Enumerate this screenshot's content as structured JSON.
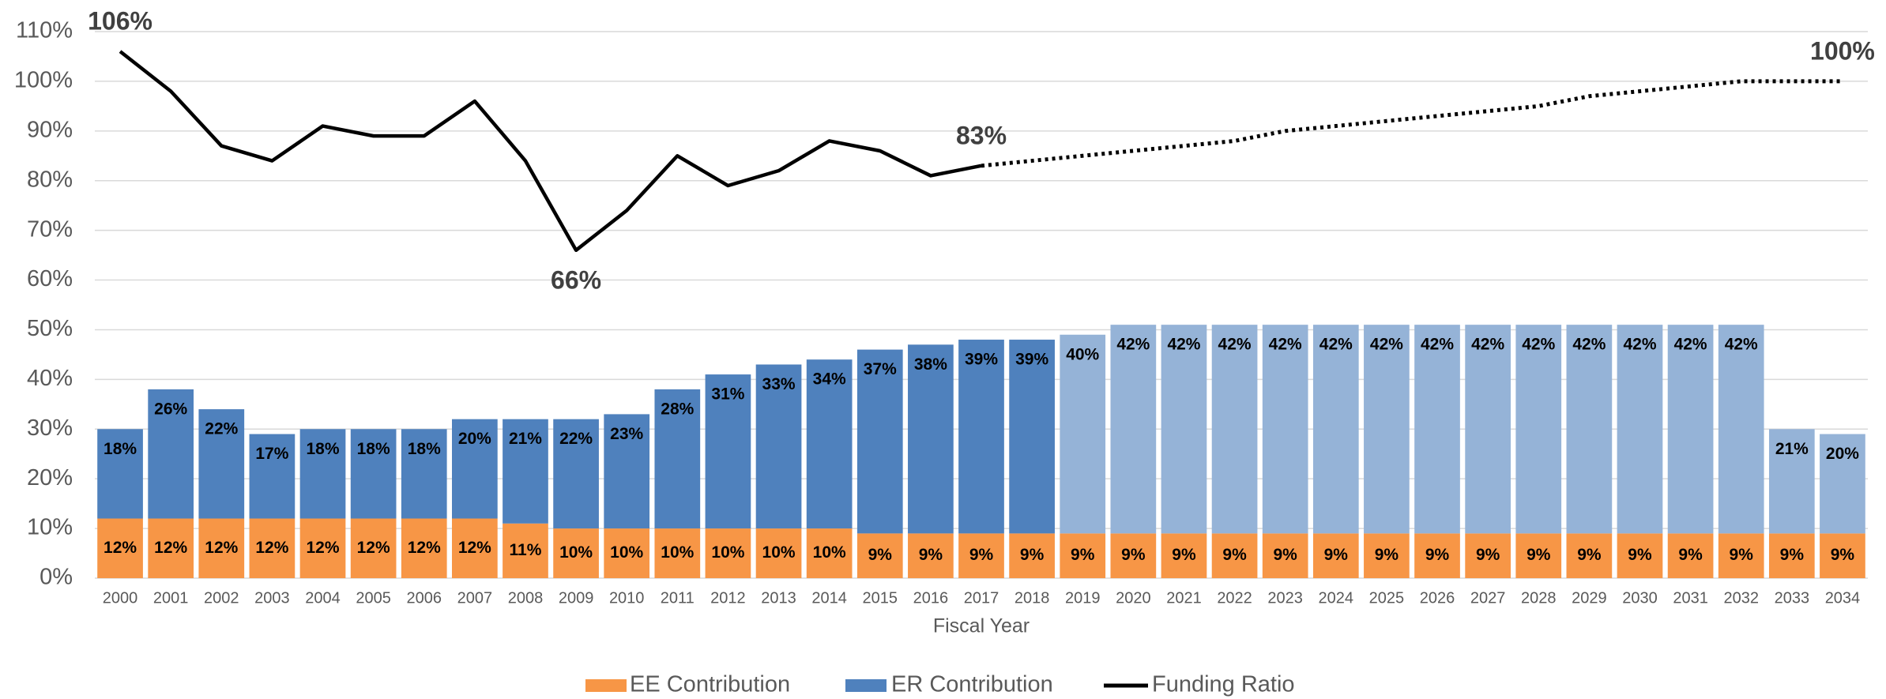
{
  "chart_data": {
    "type": "stacked-bar-line",
    "x_label": "Fiscal Year",
    "categories": [
      "2000",
      "2001",
      "2002",
      "2003",
      "2004",
      "2005",
      "2006",
      "2007",
      "2008",
      "2009",
      "2010",
      "2011",
      "2012",
      "2013",
      "2014",
      "2015",
      "2016",
      "2017",
      "2018",
      "2019",
      "2020",
      "2021",
      "2022",
      "2023",
      "2024",
      "2025",
      "2026",
      "2027",
      "2028",
      "2029",
      "2030",
      "2031",
      "2032",
      "2033",
      "2034"
    ],
    "ylim": [
      0,
      110
    ],
    "yticks": [
      {
        "value": 0,
        "label": "0%"
      },
      {
        "value": 10,
        "label": "10%"
      },
      {
        "value": 20,
        "label": "20%"
      },
      {
        "value": 30,
        "label": "30%"
      },
      {
        "value": 40,
        "label": "40%"
      },
      {
        "value": 50,
        "label": "50%"
      },
      {
        "value": 60,
        "label": "60%"
      },
      {
        "value": 70,
        "label": "70%"
      },
      {
        "value": 80,
        "label": "80%"
      },
      {
        "value": 90,
        "label": "90%"
      },
      {
        "value": 100,
        "label": "100%"
      },
      {
        "value": 110,
        "label": "110%"
      }
    ],
    "grid": true,
    "legend": "bottom",
    "series": [
      {
        "name": "EE Contribution",
        "kind": "bar",
        "color": "#f79646",
        "values": [
          12,
          12,
          12,
          12,
          12,
          12,
          12,
          12,
          11,
          10,
          10,
          10,
          10,
          10,
          10,
          9,
          9,
          9,
          9,
          9,
          9,
          9,
          9,
          9,
          9,
          9,
          9,
          9,
          9,
          9,
          9,
          9,
          9,
          9,
          9
        ],
        "value_labels": [
          "12%",
          "12%",
          "12%",
          "12%",
          "12%",
          "12%",
          "12%",
          "12%",
          "11%",
          "10%",
          "10%",
          "10%",
          "10%",
          "10%",
          "10%",
          "9%",
          "9%",
          "9%",
          "9%",
          "9%",
          "9%",
          "9%",
          "9%",
          "9%",
          "9%",
          "9%",
          "9%",
          "9%",
          "9%",
          "9%",
          "9%",
          "9%",
          "9%",
          "9%",
          "9%"
        ]
      },
      {
        "name": "ER Contribution",
        "kind": "bar",
        "color": "#4f81bd",
        "projected_color": "#95b3d7",
        "projected_from": "2019",
        "values": [
          18,
          26,
          22,
          17,
          18,
          18,
          18,
          20,
          21,
          22,
          23,
          28,
          31,
          33,
          34,
          37,
          38,
          39,
          39,
          40,
          42,
          42,
          42,
          42,
          42,
          42,
          42,
          42,
          42,
          42,
          42,
          42,
          42,
          21,
          20
        ],
        "value_labels": [
          "18%",
          "26%",
          "22%",
          "17%",
          "18%",
          "18%",
          "18%",
          "20%",
          "21%",
          "22%",
          "23%",
          "28%",
          "31%",
          "33%",
          "34%",
          "37%",
          "38%",
          "39%",
          "39%",
          "40%",
          "42%",
          "42%",
          "42%",
          "42%",
          "42%",
          "42%",
          "42%",
          "42%",
          "42%",
          "42%",
          "42%",
          "42%",
          "42%",
          "21%",
          "20%"
        ]
      },
      {
        "name": "Funding Ratio",
        "kind": "line",
        "color": "#000000",
        "dotted_from": "2017",
        "values": [
          106,
          98,
          87,
          84,
          91,
          89,
          89,
          96,
          84,
          66,
          74,
          85,
          79,
          82,
          88,
          86,
          81,
          83,
          84,
          85,
          86,
          87,
          88,
          90,
          91,
          92,
          93,
          94,
          95,
          97,
          98,
          99,
          100,
          100,
          100
        ],
        "value_labels": [
          "106%",
          null,
          null,
          null,
          null,
          null,
          null,
          null,
          null,
          "66%",
          null,
          null,
          null,
          null,
          null,
          null,
          null,
          "83%",
          null,
          null,
          null,
          null,
          null,
          null,
          null,
          null,
          null,
          null,
          null,
          null,
          null,
          null,
          null,
          null,
          "100%"
        ]
      }
    ]
  }
}
